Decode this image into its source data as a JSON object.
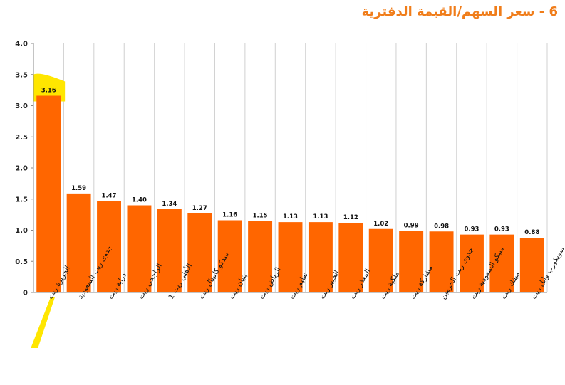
{
  "chart_data": {
    "type": "bar",
    "title": "6 - سعر السهم/القيمة الدفترية",
    "categories": [
      "الجزيرة ريت",
      "جدوى ريت السعودية",
      "دراية ريت",
      "الراجحي ريت",
      "الأهلي ريت 1",
      "سدكو كابيتال ريت",
      "بنيان ريت",
      "الرياض ريت",
      "تعليم ريت",
      "الخبير ريت",
      "المعذر ريت",
      "ملكية ريت",
      "مشاركة ريت",
      "جدوى ريت الحرمين",
      "سيكو السعودية ريت",
      "ميفك ريت",
      "سويكورب وابل ريت"
    ],
    "values": [
      3.16,
      1.59,
      1.47,
      1.4,
      1.34,
      1.27,
      1.16,
      1.15,
      1.13,
      1.13,
      1.12,
      1.02,
      0.99,
      0.98,
      0.93,
      0.93,
      0.88
    ],
    "value_labels": [
      "3.16",
      "1.59",
      "1.47",
      "1.40",
      "1.34",
      "1.27",
      "1.16",
      "1.15",
      "1.13",
      "1.13",
      "1.12",
      "1.02",
      "0.99",
      "0.98",
      "0.93",
      "0.93",
      "0.88"
    ],
    "ylim": [
      0,
      4.0
    ],
    "yticks": [
      "0",
      "0.5",
      "1.0",
      "1.5",
      "2.0",
      "2.5",
      "3.0",
      "3.5",
      "4.0"
    ],
    "grid": "vertical",
    "bar_color": "#ff6600",
    "highlight_color": "#ffe600",
    "highlight_index": 0,
    "title_color": "#f07d1a"
  }
}
